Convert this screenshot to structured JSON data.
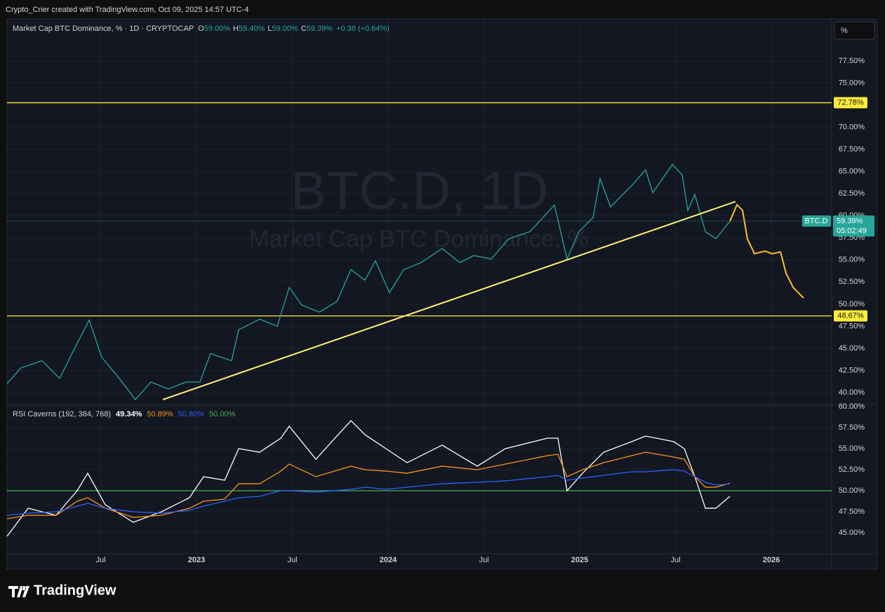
{
  "attribution": "Crypto_Crier created with TradingView.com, Oct 09, 2025 14:57 UTC-4",
  "unit_button": "%",
  "brand": "TradingView",
  "chart_data": [
    {
      "type": "line",
      "title": "Market Cap BTC Dominance, % · 1D · CRYPTOCAP",
      "ohlc_labels": [
        "O",
        "H",
        "L",
        "C"
      ],
      "ohlc_values": [
        "59.00%",
        "59.40%",
        "59.00%",
        "59.39%"
      ],
      "change": "+0.38 (+0.64%)",
      "watermark": [
        "BTC.D, 1D",
        "Market Cap BTC Dominance, %"
      ],
      "xlim": [
        2022.011,
        2026.315
      ],
      "ylim": [
        38.65,
        82.26
      ],
      "yticks": [
        {
          "value": 40,
          "label": "40.00%"
        },
        {
          "value": 42.5,
          "label": "42.50%"
        },
        {
          "value": 45,
          "label": "45.00%"
        },
        {
          "value": 47.5,
          "label": "47.50%"
        },
        {
          "value": 50,
          "label": "50.00%"
        },
        {
          "value": 52.5,
          "label": "52.50%"
        },
        {
          "value": 55,
          "label": "55.00%"
        },
        {
          "value": 57.5,
          "label": "57.50%"
        },
        {
          "value": 60,
          "label": "60.00%"
        },
        {
          "value": 62.5,
          "label": "62.50%"
        },
        {
          "value": 65,
          "label": "65.00%"
        },
        {
          "value": 67.5,
          "label": "67.50%"
        },
        {
          "value": 70,
          "label": "70.00%"
        },
        {
          "value": 72.5,
          "label": "72.50%"
        },
        {
          "value": 75,
          "label": "75.00%"
        },
        {
          "value": 77.5,
          "label": "77.50%"
        }
      ],
      "series": [
        {
          "color": "#26a69a",
          "x": [
            2022.011,
            2022.084,
            2022.194,
            2022.286,
            2022.359,
            2022.44,
            2022.505,
            2022.597,
            2022.681,
            2022.762,
            2022.853,
            2022.945,
            2023.018,
            2023.073,
            2023.183,
            2023.22,
            2023.33,
            2023.421,
            2023.484,
            2023.549,
            2023.641,
            2023.733,
            2023.806,
            2023.879,
            2023.934,
            2024.007,
            2024.081,
            2024.172,
            2024.282,
            2024.374,
            2024.447,
            2024.538,
            2024.63,
            2024.74,
            2024.868,
            2024.934,
            2024.996,
            2025.07,
            2025.106,
            2025.161,
            2025.271,
            2025.344,
            2025.381,
            2025.484,
            2025.535,
            2025.564,
            2025.601,
            2025.656,
            2025.711,
            2025.784
          ],
          "values": [
            41.0,
            42.8,
            43.6,
            41.6,
            44.8,
            48.2,
            44.0,
            41.6,
            39.2,
            41.2,
            40.4,
            41.2,
            41.2,
            44.4,
            43.6,
            47.1,
            48.3,
            47.5,
            51.9,
            49.9,
            49.1,
            50.3,
            53.9,
            52.7,
            54.9,
            51.3,
            53.9,
            54.7,
            56.3,
            54.7,
            55.5,
            55.1,
            57.4,
            58.2,
            61.2,
            55.1,
            58.2,
            59.8,
            64.2,
            61.0,
            63.4,
            65.2,
            62.6,
            65.8,
            64.6,
            60.6,
            62.4,
            58.2,
            57.4,
            59.39
          ]
        }
      ],
      "levels": [
        {
          "value": 72.78,
          "label": "72.78%",
          "color": "#ffeb3b"
        },
        {
          "value": 48.67,
          "label": "48.67%",
          "color": "#ffeb3b"
        }
      ],
      "drawings": [
        {
          "color": "#fff176",
          "x": [
            2022.824,
            2025.813
          ],
          "values": [
            39.2,
            61.6
          ]
        },
        {
          "color": "#fbc02d",
          "x": [
            2025.784,
            2025.821,
            2025.85,
            2025.875,
            2025.912,
            2025.967,
            2026.004,
            2026.048,
            2026.077,
            2026.114,
            2026.168
          ],
          "values": [
            59.39,
            61.25,
            60.6,
            57.4,
            55.7,
            56.0,
            55.7,
            55.9,
            53.5,
            51.9,
            50.7
          ]
        }
      ],
      "last_price": {
        "symbol": "BTC.D",
        "value": 59.39,
        "label": "59.39%",
        "countdown": "05:02:49",
        "color": "#26a69a"
      }
    },
    {
      "type": "line",
      "title": "RSI Caverns (192, 384, 768)",
      "xlim": [
        2022.011,
        2026.315
      ],
      "ylim": [
        42.5,
        60.25
      ],
      "xticks": [
        {
          "value": 2022.5,
          "label": "Jul"
        },
        {
          "value": 2023,
          "label": "2023"
        },
        {
          "value": 2023.5,
          "label": "Jul"
        },
        {
          "value": 2024,
          "label": "2024"
        },
        {
          "value": 2024.5,
          "label": "Jul"
        },
        {
          "value": 2025,
          "label": "2025"
        },
        {
          "value": 2025.5,
          "label": "Jul"
        },
        {
          "value": 2026,
          "label": "2026"
        }
      ],
      "yticks": [
        {
          "value": 45,
          "label": "45.00%"
        },
        {
          "value": 47.5,
          "label": "47.50%"
        },
        {
          "value": 50,
          "label": "50.00%"
        },
        {
          "value": 52.5,
          "label": "52.50%"
        },
        {
          "value": 55,
          "label": "55.00%"
        },
        {
          "value": 57.5,
          "label": "57.50%"
        },
        {
          "value": 60,
          "label": "60.00%"
        }
      ],
      "series": [
        {
          "color": "#ffffff",
          "label": "49.34%",
          "x": [
            2022.011,
            2022.121,
            2022.267,
            2022.377,
            2022.432,
            2022.524,
            2022.67,
            2022.817,
            2022.963,
            2023.037,
            2023.147,
            2023.22,
            2023.33,
            2023.44,
            2023.484,
            2023.623,
            2023.806,
            2023.879,
            2023.989,
            2024.099,
            2024.282,
            2024.465,
            2024.612,
            2024.832,
            2024.886,
            2024.934,
            2025.015,
            2025.125,
            2025.271,
            2025.344,
            2025.491,
            2025.546,
            2025.601,
            2025.656,
            2025.711,
            2025.784
          ],
          "values": [
            44.58,
            47.92,
            47.08,
            50.0,
            52.08,
            48.33,
            46.25,
            47.5,
            49.17,
            51.67,
            51.25,
            55.0,
            54.58,
            56.25,
            57.67,
            53.75,
            58.33,
            56.67,
            55.0,
            53.33,
            55.42,
            52.92,
            55.0,
            56.25,
            56.25,
            50.0,
            52.08,
            54.58,
            55.83,
            56.5,
            55.83,
            55.0,
            51.67,
            47.92,
            47.92,
            49.34
          ]
        },
        {
          "color": "#f7931a",
          "label": "50.89%",
          "x": [
            2022.011,
            2022.121,
            2022.267,
            2022.377,
            2022.432,
            2022.524,
            2022.67,
            2022.817,
            2022.963,
            2023.037,
            2023.147,
            2023.22,
            2023.33,
            2023.44,
            2023.484,
            2023.623,
            2023.806,
            2023.879,
            2023.989,
            2024.099,
            2024.282,
            2024.465,
            2024.612,
            2024.832,
            2024.886,
            2024.934,
            2025.015,
            2025.125,
            2025.271,
            2025.344,
            2025.491,
            2025.546,
            2025.601,
            2025.656,
            2025.711,
            2025.784
          ],
          "values": [
            46.67,
            47.08,
            47.08,
            48.75,
            49.17,
            47.92,
            46.83,
            47.08,
            47.92,
            48.75,
            49.0,
            50.83,
            50.83,
            52.33,
            53.17,
            51.67,
            52.92,
            52.5,
            52.33,
            52.08,
            52.92,
            52.5,
            53.17,
            54.17,
            54.33,
            51.67,
            52.5,
            53.33,
            54.17,
            54.58,
            54.0,
            53.75,
            51.67,
            50.42,
            50.42,
            50.89
          ]
        },
        {
          "color": "#2962ff",
          "label": "50.80%",
          "x": [
            2022.011,
            2022.121,
            2022.267,
            2022.377,
            2022.432,
            2022.524,
            2022.67,
            2022.817,
            2022.963,
            2023.037,
            2023.147,
            2023.22,
            2023.33,
            2023.44,
            2023.484,
            2023.623,
            2023.806,
            2023.879,
            2023.989,
            2024.099,
            2024.282,
            2024.465,
            2024.612,
            2024.832,
            2024.886,
            2024.934,
            2025.015,
            2025.125,
            2025.271,
            2025.344,
            2025.491,
            2025.546,
            2025.601,
            2025.656,
            2025.711,
            2025.784
          ],
          "values": [
            47.08,
            47.33,
            47.5,
            48.17,
            48.5,
            47.92,
            47.5,
            47.33,
            47.67,
            48.17,
            48.75,
            49.17,
            49.33,
            50.0,
            50.0,
            49.83,
            50.17,
            50.42,
            50.17,
            50.42,
            50.83,
            51.0,
            51.17,
            51.67,
            51.83,
            51.25,
            51.5,
            51.83,
            52.25,
            52.25,
            52.5,
            52.33,
            51.67,
            51.0,
            50.67,
            50.8
          ]
        }
      ],
      "level": {
        "value": 50,
        "label": "50.00%",
        "color": "#4caf50"
      }
    }
  ]
}
